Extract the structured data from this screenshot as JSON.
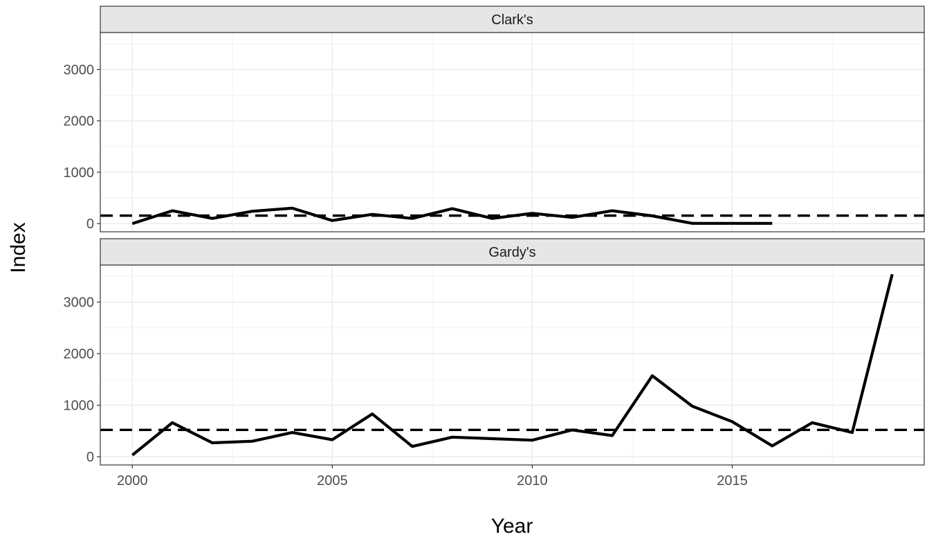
{
  "chart_data": {
    "type": "line",
    "xlabel": "Year",
    "ylabel": "Index",
    "xlim": [
      1999.2,
      2019.8
    ],
    "ylim": [
      -160,
      3720
    ],
    "x_ticks": [
      2000,
      2005,
      2010,
      2015
    ],
    "y_ticks": [
      0,
      1000,
      2000,
      3000
    ],
    "grid": true,
    "panels": [
      {
        "name": "Clark's",
        "series": [
          {
            "style": "solid",
            "x": [
              2000,
              2001,
              2002,
              2003,
              2004,
              2005,
              2006,
              2007,
              2008,
              2009,
              2010,
              2011,
              2012,
              2013,
              2014,
              2015,
              2016
            ],
            "values": [
              0,
              250,
              100,
              240,
              300,
              60,
              180,
              100,
              290,
              100,
              200,
              120,
              250,
              150,
              5,
              5,
              5
            ]
          }
        ],
        "reference_line": {
          "style": "dashed",
          "value": 155
        }
      },
      {
        "name": "Gardy's",
        "series": [
          {
            "style": "solid",
            "x": [
              2000,
              2001,
              2002,
              2003,
              2004,
              2005,
              2006,
              2007,
              2008,
              2009,
              2010,
              2011,
              2012,
              2013,
              2014,
              2015,
              2016,
              2017,
              2018,
              2019
            ],
            "values": [
              30,
              660,
              270,
              300,
              470,
              330,
              830,
              200,
              380,
              350,
              320,
              520,
              410,
              1570,
              980,
              680,
              210,
              660,
              470,
              3540
            ]
          }
        ],
        "reference_line": {
          "style": "dashed",
          "value": 520
        }
      }
    ]
  }
}
